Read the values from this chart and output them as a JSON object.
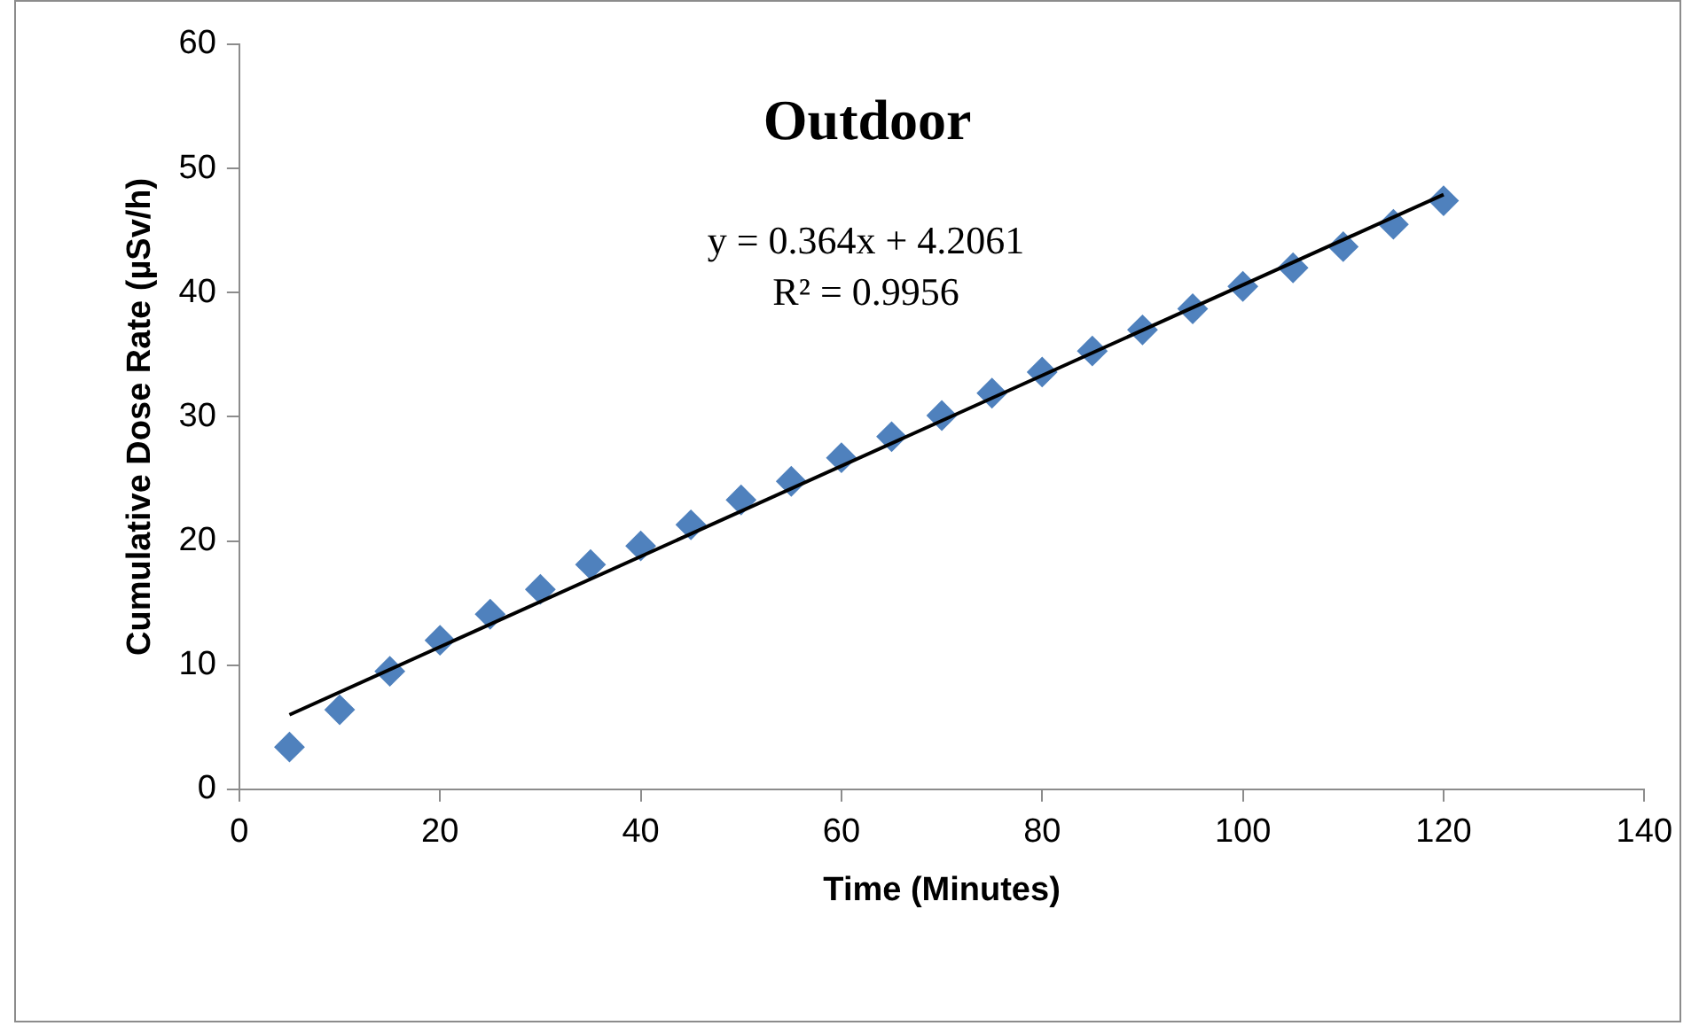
{
  "chart_data": {
    "type": "scatter",
    "title": "Outdoor",
    "xlabel": "Time (Minutes)",
    "ylabel": "Cumulative Dose Rate (µSv/h)",
    "x": [
      5,
      10,
      15,
      20,
      25,
      30,
      35,
      40,
      45,
      50,
      55,
      60,
      65,
      70,
      75,
      80,
      85,
      90,
      95,
      100,
      105,
      110,
      115,
      120
    ],
    "series": [
      {
        "color": "#4f81bd",
        "marker": "diamond",
        "values": [
          3.4,
          6.4,
          9.5,
          12,
          14.1,
          16.1,
          18.1,
          19.6,
          21.3,
          23.3,
          24.8,
          26.7,
          28.4,
          30.1,
          31.9,
          33.6,
          35.3,
          37,
          38.7,
          40.5,
          42,
          43.7,
          45.5,
          47.4
        ]
      },
      {
        "type": "line",
        "color": "#000000",
        "marker": "none",
        "x": [
          5,
          120
        ],
        "values": [
          6,
          47.9
        ]
      }
    ],
    "annotations": [
      "y = 0.364x + 4.2061",
      "R² = 0.9956"
    ],
    "xlim": [
      0,
      140
    ],
    "xticks": [
      0,
      20,
      40,
      60,
      80,
      100,
      120,
      140
    ],
    "ylim": [
      0,
      60
    ],
    "yticks": [
      0,
      10,
      20,
      30,
      40,
      50,
      60
    ],
    "grid": false,
    "legend": false
  }
}
